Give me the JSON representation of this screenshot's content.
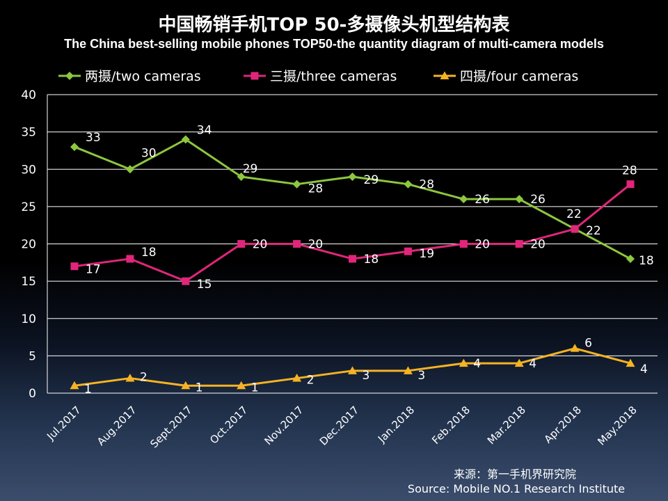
{
  "chart_data": {
    "type": "line",
    "title": "中国畅销手机TOP 50-多摄像头机型结构表",
    "subtitle": "The China best-selling mobile phones TOP50-the quantity diagram of multi-camera models",
    "categories": [
      "Jul.2017",
      "Aug.2017",
      "Sept.2017",
      "Oct.2017",
      "Nov.2017",
      "Dec.2017",
      "Jan.2018",
      "Feb.2018",
      "Mar.2018",
      "Apr.2018",
      "May.2018"
    ],
    "series": [
      {
        "name": "两摄/two cameras",
        "color": "#8dc63f",
        "marker": "diamond",
        "values": [
          33,
          30,
          34,
          29,
          28,
          29,
          28,
          26,
          26,
          22,
          18
        ]
      },
      {
        "name": "三摄/three cameras",
        "color": "#e0267a",
        "marker": "square",
        "values": [
          17,
          18,
          15,
          20,
          20,
          18,
          19,
          20,
          20,
          22,
          28
        ]
      },
      {
        "name": "四摄/four cameras",
        "color": "#f5b324",
        "marker": "triangle",
        "values": [
          1,
          2,
          1,
          1,
          2,
          3,
          3,
          4,
          4,
          6,
          4
        ]
      }
    ],
    "ylim": [
      0,
      40
    ],
    "yticks": [
      0,
      5,
      10,
      15,
      20,
      25,
      30,
      35,
      40
    ],
    "grid": true,
    "legend_position": "top"
  },
  "source": {
    "cn": "来源：第一手机界研究院",
    "en": "Source: Mobile NO.1 Research Institute"
  }
}
